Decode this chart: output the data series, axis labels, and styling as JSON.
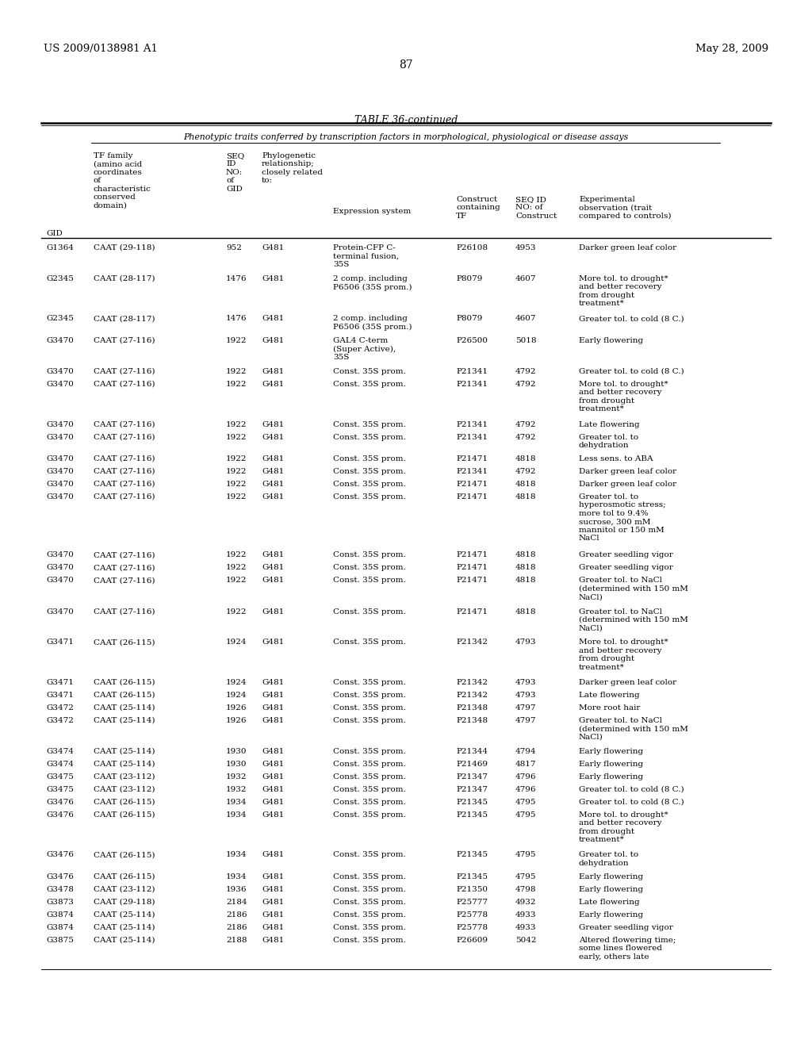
{
  "page_header_left": "US 2009/0138981 A1",
  "page_header_right": "May 28, 2009",
  "page_number": "87",
  "table_title": "TABLE 36-continued",
  "subtitle": "Phenotypic traits conferred by transcription factors in morphological, physiological or disease assays",
  "rows": [
    [
      "G1364",
      "CAAT (29-118)",
      "952",
      "G481",
      "Protein-CFP C-\nterminal fusion,\n35S",
      "P26108",
      "4953",
      "Darker green leaf color"
    ],
    [
      "G2345",
      "CAAT (28-117)",
      "1476",
      "G481",
      "2 comp. including\nP6506 (35S prom.)",
      "P8079",
      "4607",
      "More tol. to drought*\nand better recovery\nfrom drought\ntreatment*"
    ],
    [
      "G2345",
      "CAAT (28-117)",
      "1476",
      "G481",
      "2 comp. including\nP6506 (35S prom.)",
      "P8079",
      "4607",
      "Greater tol. to cold (8 C.)"
    ],
    [
      "G3470",
      "CAAT (27-116)",
      "1922",
      "G481",
      "GAL4 C-term\n(Super Active),\n35S",
      "P26500",
      "5018",
      "Early flowering"
    ],
    [
      "G3470",
      "CAAT (27-116)",
      "1922",
      "G481",
      "Const. 35S prom.",
      "P21341",
      "4792",
      "Greater tol. to cold (8 C.)"
    ],
    [
      "G3470",
      "CAAT (27-116)",
      "1922",
      "G481",
      "Const. 35S prom.",
      "P21341",
      "4792",
      "More tol. to drought*\nand better recovery\nfrom drought\ntreatment*"
    ],
    [
      "G3470",
      "CAAT (27-116)",
      "1922",
      "G481",
      "Const. 35S prom.",
      "P21341",
      "4792",
      "Late flowering"
    ],
    [
      "G3470",
      "CAAT (27-116)",
      "1922",
      "G481",
      "Const. 35S prom.",
      "P21341",
      "4792",
      "Greater tol. to\ndehydration"
    ],
    [
      "G3470",
      "CAAT (27-116)",
      "1922",
      "G481",
      "Const. 35S prom.",
      "P21471",
      "4818",
      "Less sens. to ABA"
    ],
    [
      "G3470",
      "CAAT (27-116)",
      "1922",
      "G481",
      "Const. 35S prom.",
      "P21341",
      "4792",
      "Darker green leaf color"
    ],
    [
      "G3470",
      "CAAT (27-116)",
      "1922",
      "G481",
      "Const. 35S prom.",
      "P21471",
      "4818",
      "Darker green leaf color"
    ],
    [
      "G3470",
      "CAAT (27-116)",
      "1922",
      "G481",
      "Const. 35S prom.",
      "P21471",
      "4818",
      "Greater tol. to\nhyperosmotic stress;\nmore tol to 9.4%\nsucrose, 300 mM\nmannitol or 150 mM\nNaCl"
    ],
    [
      "G3470",
      "CAAT (27-116)",
      "1922",
      "G481",
      "Const. 35S prom.",
      "P21471",
      "4818",
      "Greater seedling vigor"
    ],
    [
      "G3470",
      "CAAT (27-116)",
      "1922",
      "G481",
      "Const. 35S prom.",
      "P21471",
      "4818",
      "Greater seedling vigor"
    ],
    [
      "G3470",
      "CAAT (27-116)",
      "1922",
      "G481",
      "Const. 35S prom.",
      "P21471",
      "4818",
      "Greater tol. to NaCl\n(determined with 150 mM\nNaCl)"
    ],
    [
      "G3470",
      "CAAT (27-116)",
      "1922",
      "G481",
      "Const. 35S prom.",
      "P21471",
      "4818",
      "Greater tol. to NaCl\n(determined with 150 mM\nNaCl)"
    ],
    [
      "G3471",
      "CAAT (26-115)",
      "1924",
      "G481",
      "Const. 35S prom.",
      "P21342",
      "4793",
      "More tol. to drought*\nand better recovery\nfrom drought\ntreatment*"
    ],
    [
      "G3471",
      "CAAT (26-115)",
      "1924",
      "G481",
      "Const. 35S prom.",
      "P21342",
      "4793",
      "Darker green leaf color"
    ],
    [
      "G3471",
      "CAAT (26-115)",
      "1924",
      "G481",
      "Const. 35S prom.",
      "P21342",
      "4793",
      "Late flowering"
    ],
    [
      "G3472",
      "CAAT (25-114)",
      "1926",
      "G481",
      "Const. 35S prom.",
      "P21348",
      "4797",
      "More root hair"
    ],
    [
      "G3472",
      "CAAT (25-114)",
      "1926",
      "G481",
      "Const. 35S prom.",
      "P21348",
      "4797",
      "Greater tol. to NaCl\n(determined with 150 mM\nNaCl)"
    ],
    [
      "G3474",
      "CAAT (25-114)",
      "1930",
      "G481",
      "Const. 35S prom.",
      "P21344",
      "4794",
      "Early flowering"
    ],
    [
      "G3474",
      "CAAT (25-114)",
      "1930",
      "G481",
      "Const. 35S prom.",
      "P21469",
      "4817",
      "Early flowering"
    ],
    [
      "G3475",
      "CAAT (23-112)",
      "1932",
      "G481",
      "Const. 35S prom.",
      "P21347",
      "4796",
      "Early flowering"
    ],
    [
      "G3475",
      "CAAT (23-112)",
      "1932",
      "G481",
      "Const. 35S prom.",
      "P21347",
      "4796",
      "Greater tol. to cold (8 C.)"
    ],
    [
      "G3476",
      "CAAT (26-115)",
      "1934",
      "G481",
      "Const. 35S prom.",
      "P21345",
      "4795",
      "Greater tol. to cold (8 C.)"
    ],
    [
      "G3476",
      "CAAT (26-115)",
      "1934",
      "G481",
      "Const. 35S prom.",
      "P21345",
      "4795",
      "More tol. to drought*\nand better recovery\nfrom drought\ntreatment*"
    ],
    [
      "G3476",
      "CAAT (26-115)",
      "1934",
      "G481",
      "Const. 35S prom.",
      "P21345",
      "4795",
      "Greater tol. to\ndehydration"
    ],
    [
      "G3476",
      "CAAT (26-115)",
      "1934",
      "G481",
      "Const. 35S prom.",
      "P21345",
      "4795",
      "Early flowering"
    ],
    [
      "G3478",
      "CAAT (23-112)",
      "1936",
      "G481",
      "Const. 35S prom.",
      "P21350",
      "4798",
      "Early flowering"
    ],
    [
      "G3873",
      "CAAT (29-118)",
      "2184",
      "G481",
      "Const. 35S prom.",
      "P25777",
      "4932",
      "Late flowering"
    ],
    [
      "G3874",
      "CAAT (25-114)",
      "2186",
      "G481",
      "Const. 35S prom.",
      "P25778",
      "4933",
      "Early flowering"
    ],
    [
      "G3874",
      "CAAT (25-114)",
      "2186",
      "G481",
      "Const. 35S prom.",
      "P25778",
      "4933",
      "Greater seedling vigor"
    ],
    [
      "G3875",
      "CAAT (25-114)",
      "2188",
      "G481",
      "Const. 35S prom.",
      "P26609",
      "5042",
      "Altered flowering time;\nsome lines flowered\nearly, others late"
    ]
  ],
  "bg_color": "#ffffff",
  "text_color": "#000000"
}
